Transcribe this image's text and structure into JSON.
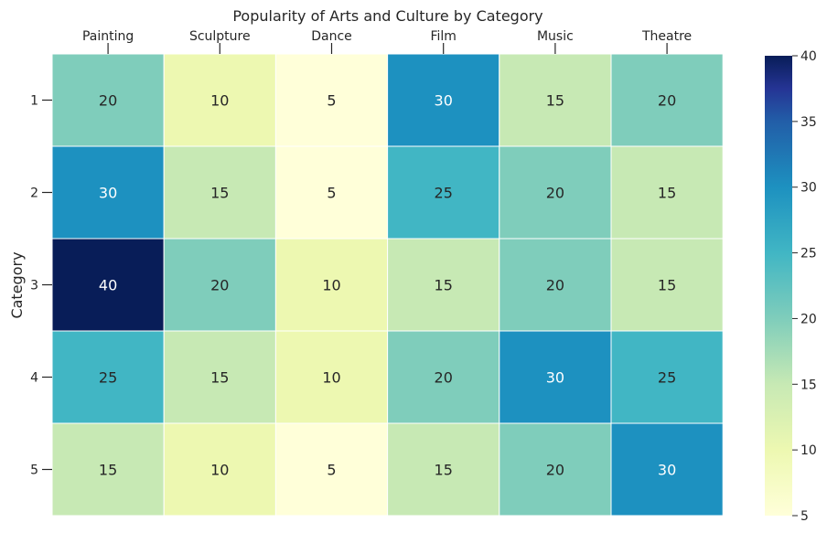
{
  "chart_data": {
    "type": "heatmap",
    "title": "Popularity of Arts and Culture by Category",
    "ylabel": "Category",
    "xlabel": "",
    "columns": [
      "Painting",
      "Sculpture",
      "Dance",
      "Film",
      "Music",
      "Theatre"
    ],
    "rows": [
      "1",
      "2",
      "3",
      "4",
      "5"
    ],
    "values": [
      [
        20,
        10,
        5,
        30,
        15,
        20
      ],
      [
        30,
        15,
        5,
        25,
        20,
        15
      ],
      [
        40,
        20,
        10,
        15,
        20,
        15
      ],
      [
        25,
        15,
        10,
        20,
        30,
        25
      ],
      [
        15,
        10,
        5,
        15,
        20,
        30
      ]
    ],
    "colormap": "YlGnBu",
    "colorbar": {
      "range": [
        5,
        40
      ],
      "ticks": [
        "5",
        "10",
        "15",
        "20",
        "25",
        "30",
        "35",
        "40"
      ]
    }
  }
}
